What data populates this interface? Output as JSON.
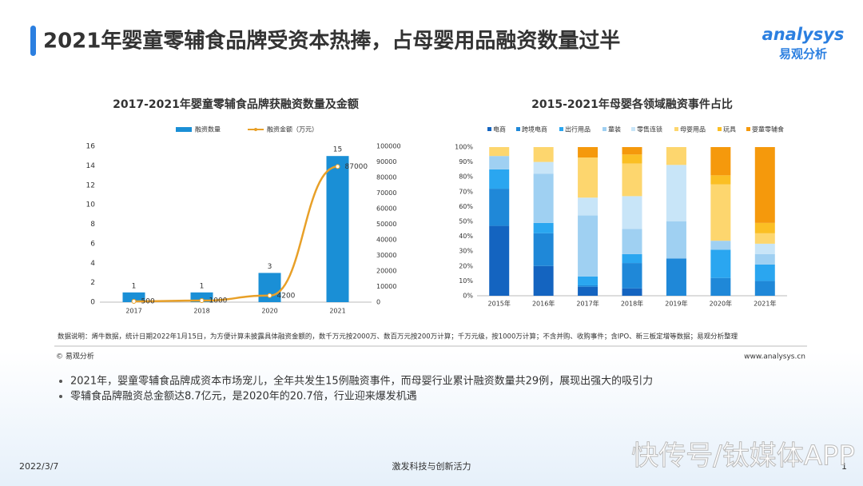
{
  "title": "2021年婴童零辅食品牌受资本热捧，占母婴用品融资数量过半",
  "logo": {
    "brand": "analysys",
    "name": "易观分析"
  },
  "chart_data": [
    {
      "type": "bar",
      "title": "2017-2021年婴童零辅食品牌获融资数量及金额",
      "categories": [
        "2017",
        "2018",
        "2020",
        "2021"
      ],
      "series": [
        {
          "name": "融资数量",
          "color": "#1a8fd6",
          "values": [
            1,
            1,
            3,
            15
          ]
        },
        {
          "name": "融资金额（万元）",
          "color": "#e8a028",
          "type": "line",
          "axis": "y2",
          "values": [
            500,
            1000,
            4200,
            87000
          ]
        }
      ],
      "ylim": [
        0,
        16
      ],
      "yticks": [
        0,
        2,
        4,
        6,
        8,
        10,
        12,
        14,
        16
      ],
      "y2lim": [
        0,
        100000
      ],
      "y2ticks": [
        0,
        10000,
        20000,
        30000,
        40000,
        50000,
        60000,
        70000,
        80000,
        90000,
        100000
      ]
    },
    {
      "type": "stacked_bar",
      "title": "2015-2021年母婴各领域融资事件占比",
      "categories": [
        "2015年",
        "2016年",
        "2017年",
        "2018年",
        "2019年",
        "2020年",
        "2021年"
      ],
      "series": [
        {
          "name": "电商",
          "color": "#1464c0",
          "values": [
            47,
            20,
            6,
            5,
            0,
            0,
            0
          ]
        },
        {
          "name": "跨境电商",
          "color": "#1f88d8",
          "values": [
            25,
            22,
            1,
            17,
            25,
            12,
            10
          ]
        },
        {
          "name": "出行用品",
          "color": "#2aa6f0",
          "values": [
            13,
            7,
            6,
            6,
            0,
            19,
            11
          ]
        },
        {
          "name": "童装",
          "color": "#9fd0f2",
          "values": [
            9,
            33,
            41,
            17,
            25,
            6,
            7
          ]
        },
        {
          "name": "零售连锁",
          "color": "#c8e5f8",
          "values": [
            0,
            8,
            12,
            22,
            38,
            0,
            7
          ]
        },
        {
          "name": "母婴用品",
          "color": "#fdd66e",
          "values": [
            6,
            10,
            27,
            22,
            12,
            38,
            7
          ]
        },
        {
          "name": "玩具",
          "color": "#fbbf24",
          "values": [
            0,
            0,
            0,
            6,
            0,
            6,
            7
          ]
        },
        {
          "name": "婴童零辅食",
          "color": "#f5990c",
          "values": [
            0,
            0,
            7,
            5,
            0,
            19,
            51
          ]
        }
      ],
      "ylim": [
        0,
        100
      ],
      "yticks": [
        {
          "value": 0,
          "label": "0%"
        },
        {
          "value": 10,
          "label": "10%"
        },
        {
          "value": 20,
          "label": "20%"
        },
        {
          "value": 30,
          "label": "30%"
        },
        {
          "value": 40,
          "label": "40%"
        },
        {
          "value": 50,
          "label": "50%"
        },
        {
          "value": 60,
          "label": "60%"
        },
        {
          "value": 70,
          "label": "70%"
        },
        {
          "value": 80,
          "label": "80%"
        },
        {
          "value": 90,
          "label": "90%"
        },
        {
          "value": 100,
          "label": "100%"
        }
      ]
    }
  ],
  "note": "数据说明：烯牛数据，统计日期2022年1月15日，为方便计算未披露具体融资金额的，数千万元按2000万、数百万元按200万计算；千万元级，按1000万计算；不含并购、收购事件；含IPO、新三板定增等数据；易观分析整理",
  "copyright": "© 易观分析",
  "website": "www.analysys.cn",
  "bullets": [
    "2021年，婴童零辅食品牌成资本市场宠儿，全年共发生15例融资事件，而母婴行业累计融资数量共29例，展现出强大的吸引力",
    "零辅食品牌融资总金额达8.7亿元，是2020年的20.7倍，行业迎来爆发机遇"
  ],
  "footer": {
    "date": "2022/3/7",
    "slogan": "激发科技与创新活力",
    "page": "1",
    "watermark": "快传号/钛媒体APP"
  }
}
